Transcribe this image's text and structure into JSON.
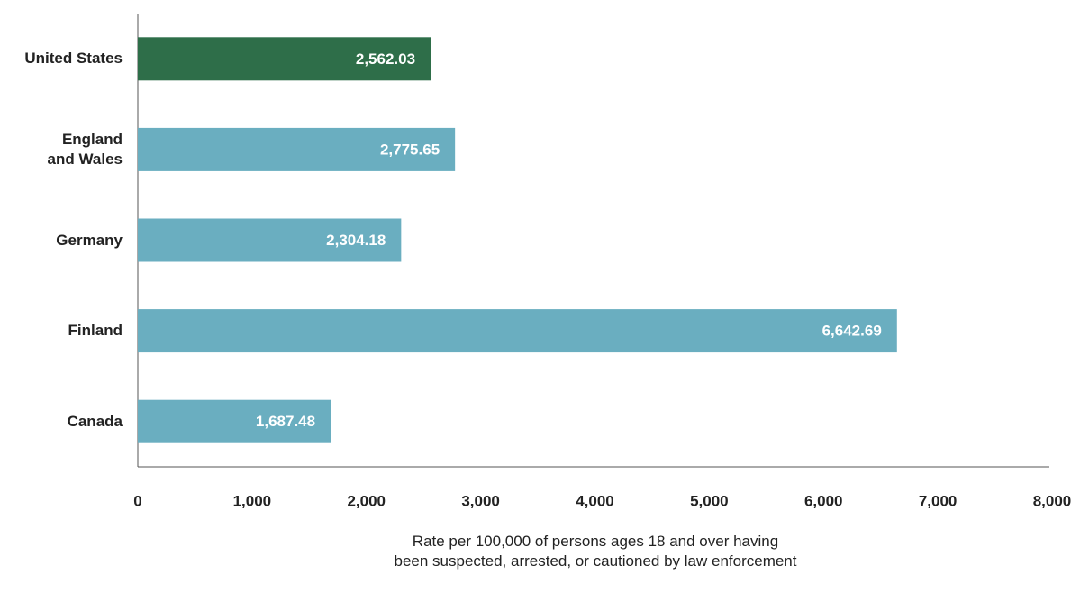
{
  "chart_data": {
    "type": "barh",
    "categories": [
      "United States",
      "England and Wales",
      "Germany",
      "Finland",
      "Canada"
    ],
    "values": [
      2562.03,
      2775.65,
      2304.18,
      6642.69,
      1687.48
    ],
    "value_labels": [
      "2,562.03",
      "2,775.65",
      "2,304.18",
      "6,642.69",
      "1,687.48"
    ],
    "colors": [
      "#2e6e49",
      "#6aaec0",
      "#6aaec0",
      "#6aaec0",
      "#6aaec0"
    ],
    "xlim": [
      0,
      8000
    ],
    "xticks": [
      0,
      {
        "value": 1000,
        "label": "1,000"
      },
      {
        "value": 2000,
        "label": "2,000"
      },
      {
        "value": 3000,
        "label": "3,000"
      },
      {
        "value": 4000,
        "label": "4,000"
      },
      {
        "value": 5000,
        "label": "5,000"
      },
      {
        "value": 6000,
        "label": "6,000"
      },
      {
        "value": 7000,
        "label": "7,000"
      },
      {
        "value": 8000,
        "label": "8,000"
      }
    ],
    "xlabel": "Rate per 100,000 of persons ages 18 and over having been suspected, arrested, or cautioned by law enforcement",
    "grid": false
  }
}
